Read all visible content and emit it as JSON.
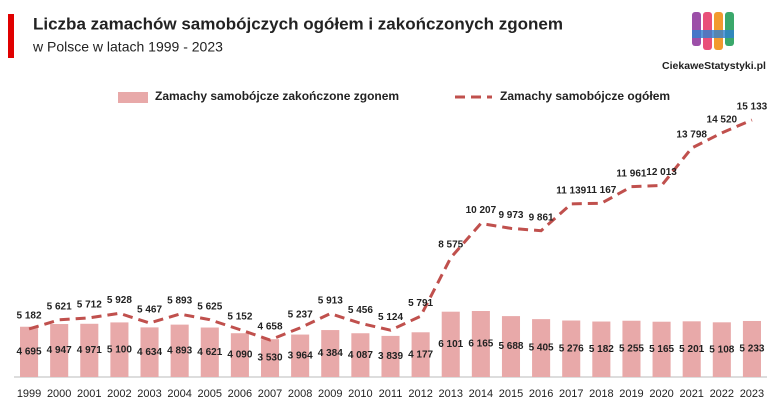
{
  "chart_data": {
    "type": "combo",
    "title": "Liczba zamachów samobójczych ogółem i zakończonych zgonem",
    "subtitle": "w Polsce w latach 1999 - 2023",
    "logo_text": "CiekaweStatystyki.pl",
    "categories": [
      "1999",
      "2000",
      "2001",
      "2002",
      "2003",
      "2004",
      "2005",
      "2006",
      "2007",
      "2008",
      "2009",
      "2010",
      "2011",
      "2012",
      "2013",
      "2014",
      "2015",
      "2016",
      "2017",
      "2018",
      "2019",
      "2020",
      "2021",
      "2022",
      "2023"
    ],
    "series": [
      {
        "name": "Zamachy samobójcze zakończone zgonem",
        "type": "bar",
        "color": "#e8a9a9",
        "values": [
          4695,
          4947,
          4971,
          5100,
          4634,
          4893,
          4621,
          4090,
          3530,
          3964,
          4384,
          4087,
          3839,
          4177,
          6101,
          6165,
          5688,
          5405,
          5276,
          5182,
          5255,
          5165,
          5201,
          5108,
          5233
        ],
        "value_labels": [
          "4 695",
          "4 947",
          "4 971",
          "5 100",
          "4 634",
          "4 893",
          "4 621",
          "4 090",
          "3 530",
          "3 964",
          "4 384",
          "4 087",
          "3 839",
          "4 177",
          "6 101",
          "6 165",
          "5 688",
          "5 405",
          "5 276",
          "5 182",
          "5 255",
          "5 165",
          "5 201",
          "5 108",
          "5 233"
        ]
      },
      {
        "name": "Zamachy samobójcze ogółem",
        "type": "line",
        "color": "#c0504d",
        "values": [
          5182,
          5621,
          5712,
          5928,
          5467,
          5893,
          5625,
          5152,
          4658,
          5237,
          5913,
          5456,
          5124,
          5791,
          8575,
          10207,
          9973,
          9861,
          11139,
          11167,
          11961,
          12013,
          13798,
          14520,
          15133
        ],
        "value_labels": [
          "5 182",
          "5 621",
          "5 712",
          "5 928",
          "5 467",
          "5 893",
          "5 625",
          "5 152",
          "4 658",
          "5 237",
          "5 913",
          "5 456",
          "5 124",
          "5 791",
          "8 575",
          "10 207",
          "9 973",
          "9 861",
          "11 139",
          "11 167",
          "11 961",
          "12 013",
          "13 798",
          "14 520",
          "15 133"
        ]
      }
    ]
  }
}
